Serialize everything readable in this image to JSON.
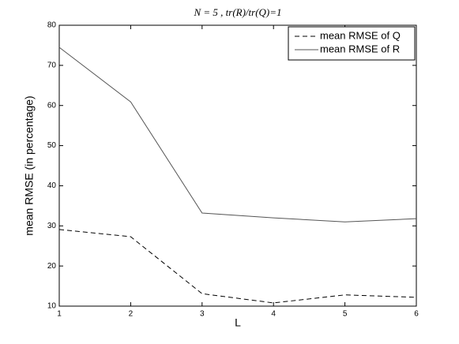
{
  "chart_data": {
    "type": "line",
    "title": "N = 5 , tr(R)/tr(Q)=1",
    "x_label": "L",
    "y_label": "mean RMSE (in percentage)",
    "x": [
      1,
      2,
      3,
      4,
      5,
      6
    ],
    "series": [
      {
        "name": "mean RMSE of Q",
        "color": "#000000",
        "dash": "dashed",
        "values": [
          29.1,
          27.3,
          13.1,
          10.8,
          12.8,
          12.2
        ]
      },
      {
        "name": "mean RMSE of R",
        "color": "#555555",
        "dash": "solid",
        "values": [
          74.5,
          60.9,
          33.2,
          32.0,
          31.0,
          31.8
        ]
      }
    ],
    "xlim": [
      1,
      6
    ],
    "xticks": [
      1,
      2,
      3,
      4,
      5,
      6
    ],
    "ylim": [
      10,
      80
    ],
    "yticks": [
      10,
      20,
      30,
      40,
      50,
      60,
      70,
      80
    ],
    "grid": false,
    "legend": "upper right"
  }
}
